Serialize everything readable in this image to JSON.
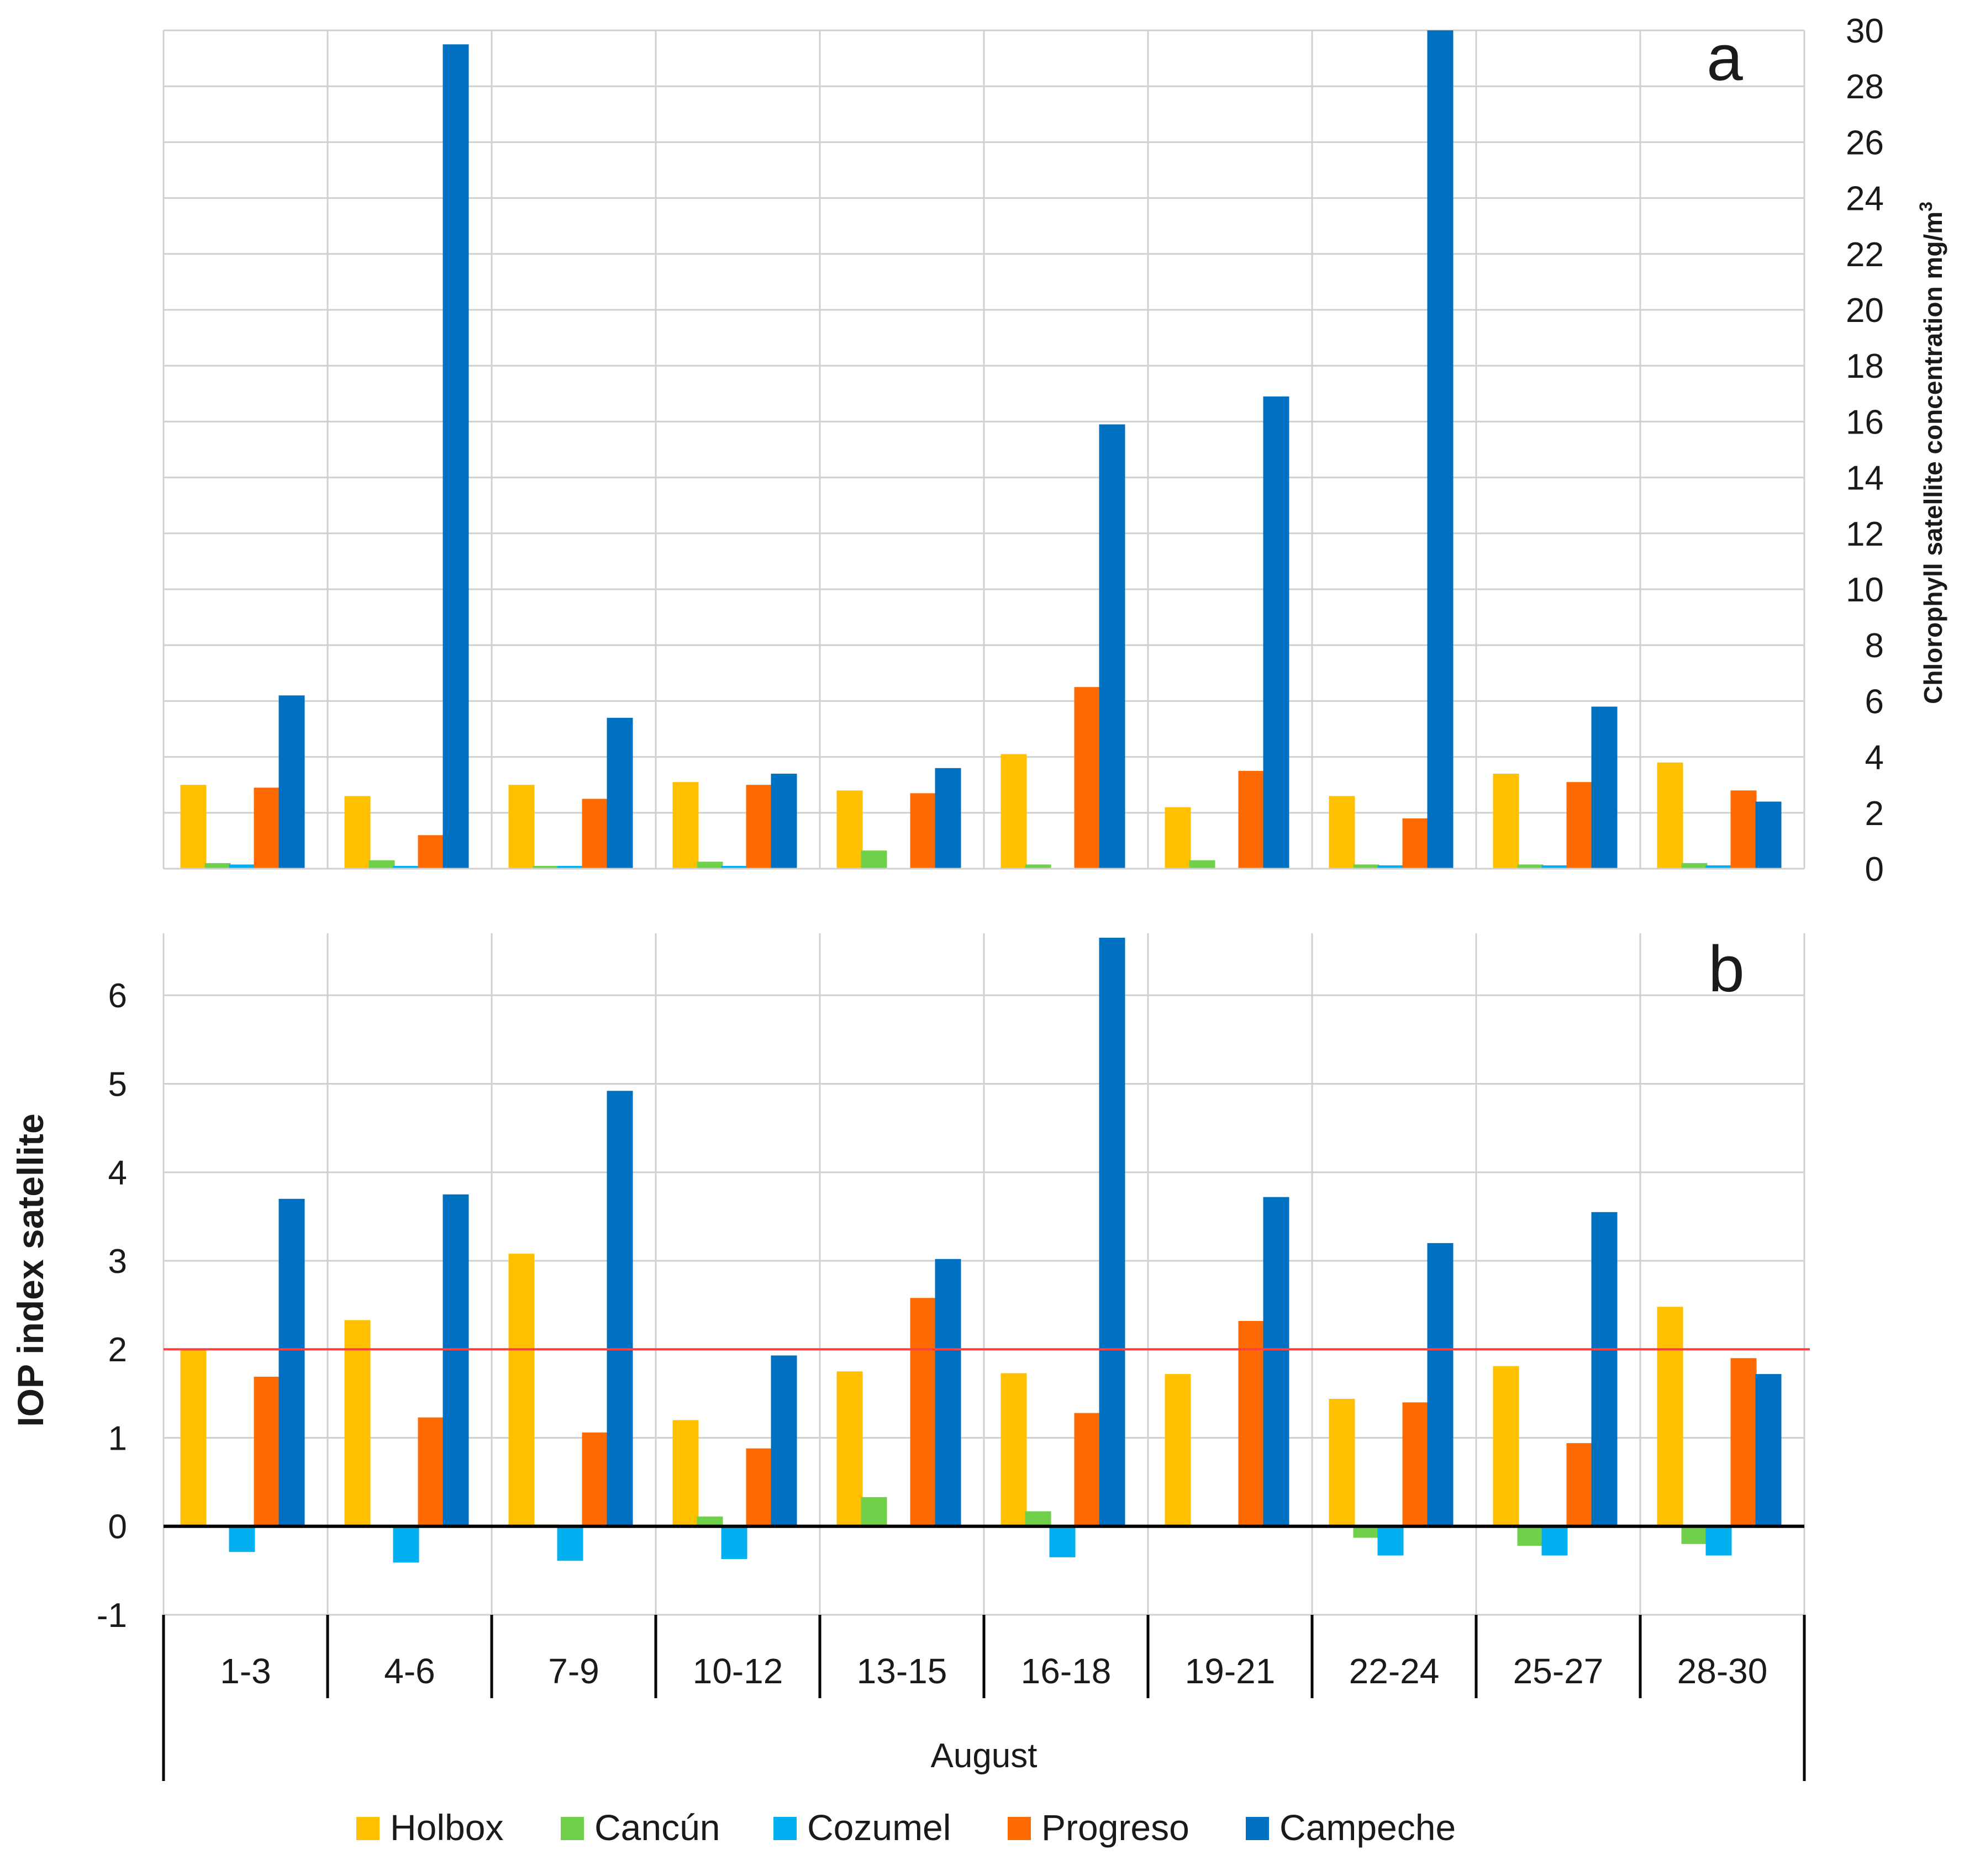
{
  "colors": {
    "Holbox": "#FFC000",
    "Cancún": "#70D04A",
    "Cozumel": "#00B0F0",
    "Progreso": "#FF6A00",
    "Campeche": "#0070C0",
    "threshold": "#FF4040",
    "grid": "#D0D0D0",
    "axis": "#000000"
  },
  "legend": [
    "Holbox",
    "Cancún",
    "Cozumel",
    "Progreso",
    "Campeche"
  ],
  "x_group_label": "August",
  "chart_data": [
    {
      "panel": "a",
      "type": "bar",
      "ylabel": "Chlorophyll satellite concentration  mg/m",
      "ylabel_sup": "3",
      "ylabel_position": "right",
      "ylim": [
        0,
        30
      ],
      "yticks": [
        0,
        2,
        4,
        6,
        8,
        10,
        12,
        14,
        16,
        18,
        20,
        22,
        24,
        26,
        28,
        30
      ],
      "categories": [
        "1-3",
        "4-6",
        "7-9",
        "10-12",
        "13-15",
        "16-18",
        "19-21",
        "22-24",
        "25-27",
        "28-30"
      ],
      "series": [
        {
          "name": "Holbox",
          "values": [
            3.0,
            2.6,
            3.0,
            3.1,
            2.8,
            4.1,
            2.2,
            2.6,
            3.4,
            3.8
          ]
        },
        {
          "name": "Cancún",
          "values": [
            0.2,
            0.3,
            0.1,
            0.25,
            0.65,
            0.15,
            0.3,
            0.15,
            0.15,
            0.2
          ]
        },
        {
          "name": "Cozumel",
          "values": [
            0.15,
            0.1,
            0.1,
            0.1,
            0.0,
            0.0,
            0.0,
            0.12,
            0.12,
            0.12
          ]
        },
        {
          "name": "Progreso",
          "values": [
            2.9,
            1.2,
            2.5,
            3.0,
            2.7,
            6.5,
            3.5,
            1.8,
            3.1,
            2.8
          ]
        },
        {
          "name": "Campeche",
          "values": [
            6.2,
            29.5,
            5.4,
            3.4,
            3.6,
            15.9,
            16.9,
            30.0,
            5.8,
            2.4
          ]
        }
      ]
    },
    {
      "panel": "b",
      "type": "bar",
      "ylabel": "IOP index satellite",
      "ylabel_position": "left",
      "ylim": [
        -1,
        6.7
      ],
      "yticks": [
        -1,
        0,
        1,
        2,
        3,
        4,
        5,
        6
      ],
      "reference_line": 2,
      "xlabel": "August",
      "categories": [
        "1-3",
        "4-6",
        "7-9",
        "10-12",
        "13-15",
        "16-18",
        "19-21",
        "22-24",
        "25-27",
        "28-30"
      ],
      "series": [
        {
          "name": "Holbox",
          "values": [
            2.0,
            2.33,
            3.08,
            1.2,
            1.75,
            1.73,
            1.72,
            1.44,
            1.81,
            2.48
          ]
        },
        {
          "name": "Cancún",
          "values": [
            0.0,
            0.0,
            0.02,
            0.11,
            0.33,
            0.17,
            0.0,
            -0.13,
            -0.22,
            -0.2
          ]
        },
        {
          "name": "Cozumel",
          "values": [
            -0.29,
            -0.41,
            -0.39,
            -0.37,
            0.0,
            -0.35,
            0.0,
            -0.33,
            -0.33,
            -0.33
          ]
        },
        {
          "name": "Progreso",
          "values": [
            1.69,
            1.23,
            1.06,
            0.88,
            2.58,
            1.28,
            2.32,
            1.4,
            0.94,
            1.9
          ]
        },
        {
          "name": "Campeche",
          "values": [
            3.7,
            3.75,
            4.92,
            1.93,
            3.02,
            6.65,
            3.72,
            3.2,
            3.55,
            1.72
          ]
        }
      ]
    }
  ]
}
